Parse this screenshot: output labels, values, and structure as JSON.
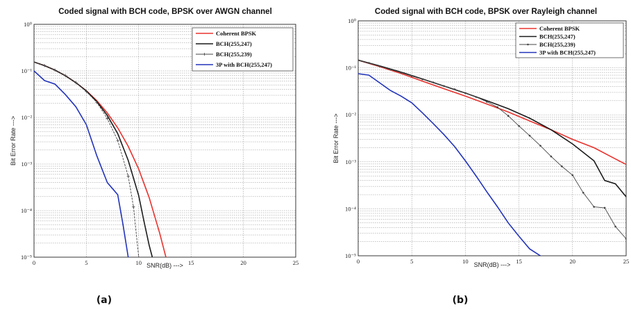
{
  "chart_data": [
    {
      "type": "line",
      "title": "Coded signal with BCH code, BPSK over AWGN channel",
      "xlabel": "SNR(dB) --->",
      "ylabel": "Bit Error Rate --->",
      "xlim": [
        0,
        25
      ],
      "ylim": [
        1e-05,
        1
      ],
      "yscale": "log",
      "xticks": [
        "0",
        "5",
        "10",
        "15",
        "20",
        "25"
      ],
      "yticks": [
        "10⁰",
        "10⁻¹",
        "10⁻²",
        "10⁻³",
        "10⁻⁴",
        "10⁻⁵"
      ],
      "grid": true,
      "legend_position": "top-right",
      "caption": "(a)",
      "series": [
        {
          "name": "Coherent BPSK",
          "color": "#e8322d",
          "marker": "none",
          "x": [
            0,
            1,
            2,
            3,
            4,
            5,
            6,
            7,
            8,
            9,
            10,
            11,
            12,
            12.6
          ],
          "y": [
            0.155,
            0.13,
            0.104,
            0.079,
            0.056,
            0.0375,
            0.023,
            0.0125,
            0.006,
            0.0024,
            0.00078,
            0.00019,
            3.3e-05,
            1e-05
          ]
        },
        {
          "name": "BCH(255,247)",
          "color": "#1a1a1a",
          "marker": "none",
          "x": [
            0,
            1,
            2,
            3,
            4,
            5,
            6,
            7,
            8,
            9,
            10,
            10.5,
            11,
            11.3
          ],
          "y": [
            0.155,
            0.13,
            0.104,
            0.079,
            0.056,
            0.037,
            0.022,
            0.011,
            0.0045,
            0.0012,
            0.00021,
            6e-05,
            1.8e-05,
            1e-05
          ]
        },
        {
          "name": "BCH(255,239)",
          "color": "#444444",
          "marker": "plus",
          "x": [
            0,
            1,
            2,
            3,
            4,
            5,
            6,
            7,
            8,
            9,
            9.5,
            10
          ],
          "y": [
            0.155,
            0.13,
            0.104,
            0.079,
            0.056,
            0.036,
            0.021,
            0.0095,
            0.0032,
            0.00055,
            0.00012,
            1e-05
          ]
        },
        {
          "name": "3P with BCH(255,247)",
          "color": "#2233bb",
          "marker": "none",
          "x": [
            0,
            1,
            2,
            3,
            4,
            5,
            6,
            7,
            8,
            8.5,
            9
          ],
          "y": [
            0.1,
            0.062,
            0.052,
            0.031,
            0.017,
            0.007,
            0.0015,
            0.0004,
            0.00022,
            5e-05,
            1e-05
          ]
        }
      ]
    },
    {
      "type": "line",
      "title": "Coded signal with BCH code, BPSK over Rayleigh channel",
      "xlabel": "SNR(dB) --->",
      "ylabel": "Bit Error Rate --->",
      "xlim": [
        0,
        25
      ],
      "ylim": [
        1e-05,
        1
      ],
      "yscale": "log",
      "xticks": [
        "0",
        "5",
        "10",
        "15",
        "20",
        "25"
      ],
      "yticks": [
        "10⁰",
        "10⁻¹",
        "10⁻²",
        "10⁻³",
        "10⁻⁴",
        "10⁻⁵"
      ],
      "grid": true,
      "legend_position": "top-right",
      "caption": "(b)",
      "series": [
        {
          "name": "Coherent BPSK",
          "color": "#e8322d",
          "marker": "none",
          "x": [
            0,
            2,
            4,
            6,
            8,
            10,
            12,
            14,
            16,
            18,
            20,
            22,
            24,
            25
          ],
          "y": [
            0.146,
            0.106,
            0.076,
            0.052,
            0.036,
            0.025,
            0.017,
            0.0115,
            0.0074,
            0.0048,
            0.003,
            0.002,
            0.00115,
            0.00088
          ]
        },
        {
          "name": "BCH(255,247)",
          "color": "#1a1a1a",
          "marker": "none",
          "x": [
            0,
            2,
            4,
            6,
            8,
            10,
            12,
            14,
            16,
            18,
            20,
            22,
            23,
            24,
            25
          ],
          "y": [
            0.146,
            0.11,
            0.081,
            0.058,
            0.041,
            0.029,
            0.02,
            0.0135,
            0.0085,
            0.0048,
            0.0024,
            0.00105,
            0.0004,
            0.00034,
            0.00018
          ]
        },
        {
          "name": "BCH(255,239)",
          "color": "#444444",
          "marker": "dot",
          "x": [
            0,
            1,
            2,
            3,
            4,
            5,
            6,
            7,
            8,
            9,
            10,
            11,
            12,
            13,
            14,
            15,
            16,
            17,
            18,
            19,
            20,
            21,
            22,
            23,
            24,
            25
          ],
          "y": [
            0.146,
            0.127,
            0.108,
            0.092,
            0.079,
            0.067,
            0.057,
            0.049,
            0.041,
            0.035,
            0.029,
            0.024,
            0.019,
            0.0145,
            0.0095,
            0.0058,
            0.0036,
            0.0022,
            0.0013,
            0.0008,
            0.00052,
            0.00022,
            0.00011,
            0.000105,
            4.2e-05,
            2.3e-05
          ]
        },
        {
          "name": "3P with BCH(255,247)",
          "color": "#2233bb",
          "marker": "none",
          "x": [
            0,
            1,
            2,
            3,
            4,
            5,
            6,
            7,
            8,
            9,
            10,
            11,
            12,
            13,
            14,
            15,
            16,
            17
          ],
          "y": [
            0.075,
            0.07,
            0.048,
            0.033,
            0.025,
            0.018,
            0.011,
            0.0065,
            0.0038,
            0.0021,
            0.00105,
            0.0005,
            0.00023,
            0.00011,
            5e-05,
            2.6e-05,
            1.4e-05,
            1e-05
          ]
        }
      ]
    }
  ]
}
